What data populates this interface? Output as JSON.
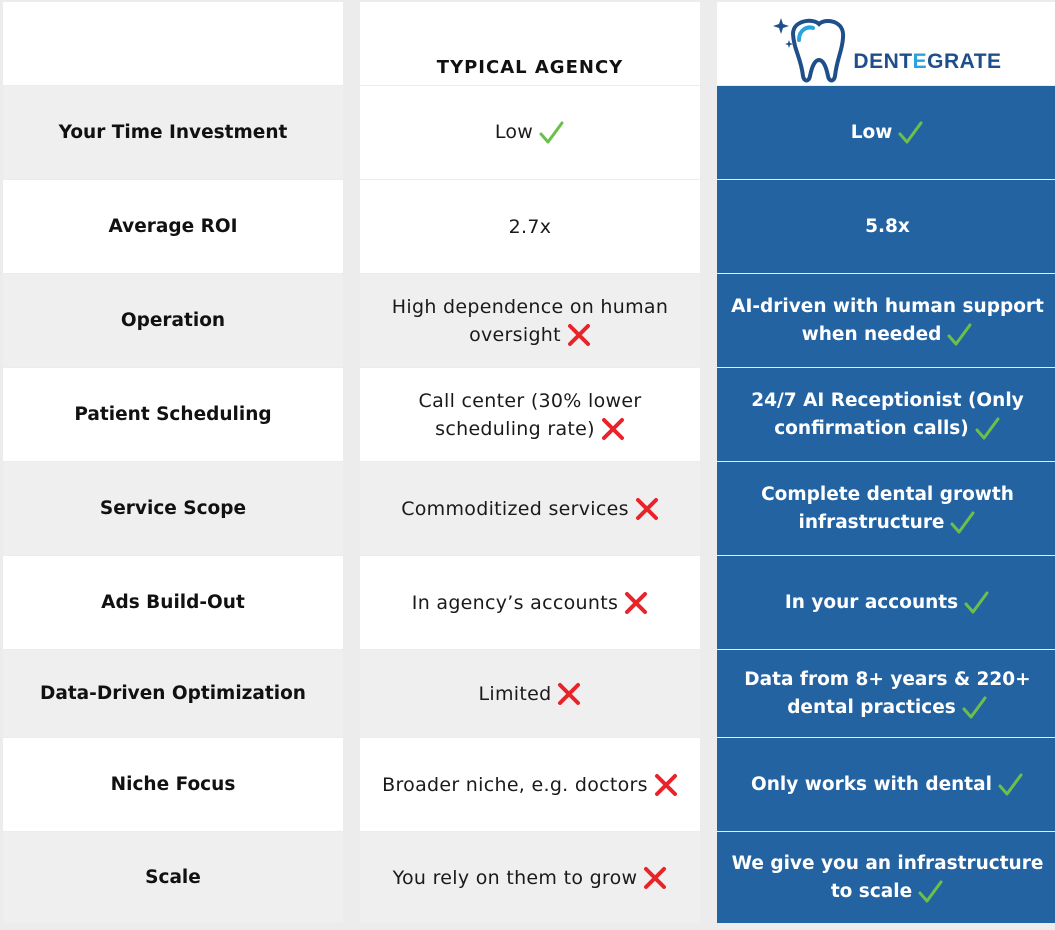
{
  "header": {
    "col2_title": "TYPICAL AGENCY",
    "brand_part1": "DENT",
    "brand_accent": "E",
    "brand_part2": "GRATE"
  },
  "rows": [
    {
      "label": "Your Time Investment",
      "agency": "Low",
      "agency_mark": "check",
      "ours": "Low"
    },
    {
      "label": "Average ROI",
      "agency": "2.7x",
      "agency_mark": "none",
      "ours": "5.8x",
      "ours_mark": "none"
    },
    {
      "label": "Operation",
      "agency": "High dependence on human oversight",
      "agency_mark": "cross",
      "ours": "AI-driven with human support when needed"
    },
    {
      "label": "Patient Scheduling",
      "agency": "Call center (30% lower scheduling rate)",
      "agency_mark": "cross",
      "ours": "24/7 AI Receptionist (Only confirmation calls)"
    },
    {
      "label": "Service Scope",
      "agency": "Commoditized services",
      "agency_mark": "cross",
      "ours": "Complete dental growth infrastructure"
    },
    {
      "label": "Ads Build-Out",
      "agency": "In agency’s accounts",
      "agency_mark": "cross",
      "ours": "In your accounts"
    },
    {
      "label": "Data-Driven Optimization",
      "agency": "Limited",
      "agency_mark": "cross",
      "ours": "Data from 8+ years & 220+ dental practices"
    },
    {
      "label": "Niche Focus",
      "agency": "Broader niche, e.g. doctors",
      "agency_mark": "cross",
      "ours": "Only works with dental"
    },
    {
      "label": "Scale",
      "agency": "You rely on them to grow",
      "agency_mark": "cross",
      "ours": "We give you an infrastructure to scale"
    }
  ],
  "colors": {
    "brand_blue": "#2363a2",
    "check_green": "#6cc04a",
    "cross_red": "#e8232a"
  }
}
